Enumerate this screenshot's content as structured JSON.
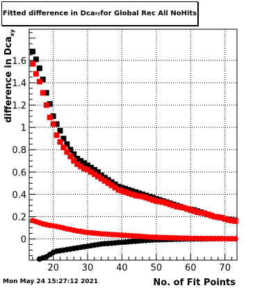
{
  "chart_data": {
    "type": "scatter",
    "title": {
      "text": "Fitted difference in Dca",
      "subscript": "xy",
      "suffix": " for Global Rec All NoHits"
    },
    "xlabel": "No. of Fit Points",
    "ylabel": "difference in Dca",
    "ylabel_subscript": "xy",
    "xlim": [
      13,
      73.5
    ],
    "ylim": [
      -0.19,
      1.88
    ],
    "x_ticks": [
      20,
      30,
      40,
      50,
      60,
      70
    ],
    "y_ticks": [
      0,
      0.2,
      0.4,
      0.6,
      0.8,
      1,
      1.2,
      1.4,
      1.6
    ],
    "y_tick_labels": [
      "0",
      "0.2",
      "0.4",
      "0.6",
      "0.8",
      "1",
      "1.2",
      "1.4",
      "1.6"
    ],
    "grid": true,
    "series": [
      {
        "color": "#000000",
        "marker": "square",
        "x": [
          14,
          15,
          16,
          17,
          18,
          19,
          20,
          21,
          22,
          23,
          24,
          25,
          26,
          27,
          28,
          29,
          30,
          31,
          32,
          33,
          34,
          35,
          36,
          37,
          38,
          39,
          40,
          41,
          42,
          43,
          44,
          45,
          46,
          47,
          48,
          49,
          50,
          51,
          52,
          53,
          54,
          55,
          56,
          57,
          58,
          59,
          60,
          61,
          62,
          63,
          64,
          65,
          66,
          67,
          68,
          69,
          70,
          71,
          72,
          73
        ],
        "y": [
          1.68,
          1.61,
          1.53,
          1.43,
          1.31,
          1.21,
          1.1,
          1.03,
          0.97,
          0.9,
          0.85,
          0.8,
          0.76,
          0.72,
          0.7,
          0.68,
          0.66,
          0.64,
          0.62,
          0.6,
          0.57,
          0.55,
          0.53,
          0.51,
          0.49,
          0.47,
          0.46,
          0.45,
          0.44,
          0.43,
          0.42,
          0.41,
          0.4,
          0.39,
          0.38,
          0.37,
          0.36,
          0.35,
          0.34,
          0.33,
          0.32,
          0.31,
          0.3,
          0.29,
          0.28,
          0.27,
          0.265,
          0.26,
          0.25,
          0.24,
          0.23,
          0.22,
          0.21,
          0.2,
          0.195,
          0.19,
          0.18,
          0.175,
          0.17,
          0.165
        ]
      },
      {
        "color": "#ff0000",
        "marker": "square",
        "x": [
          14,
          15,
          16,
          17,
          18,
          19,
          20,
          21,
          22,
          23,
          24,
          25,
          26,
          27,
          28,
          29,
          30,
          31,
          32,
          33,
          34,
          35,
          36,
          37,
          38,
          39,
          40,
          41,
          42,
          43,
          44,
          45,
          46,
          47,
          48,
          49,
          50,
          51,
          52,
          53,
          54,
          55,
          56,
          57,
          58,
          59,
          60,
          61,
          62,
          63,
          64,
          65,
          66,
          67,
          68,
          69,
          70,
          71,
          72,
          73
        ],
        "y": [
          1.57,
          1.48,
          1.41,
          1.31,
          1.2,
          1.09,
          1.03,
          0.93,
          0.87,
          0.82,
          0.78,
          0.74,
          0.7,
          0.67,
          0.65,
          0.63,
          0.62,
          0.6,
          0.58,
          0.56,
          0.54,
          0.52,
          0.5,
          0.48,
          0.46,
          0.44,
          0.43,
          0.42,
          0.41,
          0.4,
          0.39,
          0.385,
          0.38,
          0.37,
          0.36,
          0.35,
          0.34,
          0.335,
          0.33,
          0.32,
          0.31,
          0.3,
          0.29,
          0.285,
          0.28,
          0.27,
          0.26,
          0.25,
          0.24,
          0.235,
          0.23,
          0.22,
          0.21,
          0.2,
          0.195,
          0.19,
          0.18,
          0.17,
          0.165,
          0.16
        ]
      },
      {
        "color": "#000000",
        "marker": "circle",
        "x": [
          16,
          17,
          18,
          19,
          20,
          21,
          22,
          23,
          24,
          25,
          26,
          27,
          28,
          29,
          30,
          31,
          32,
          33,
          34,
          35,
          36,
          37,
          38,
          39,
          40,
          41,
          42,
          43,
          44,
          45,
          46,
          47,
          48,
          49,
          50,
          51,
          52,
          53,
          54,
          55,
          56,
          57,
          58,
          59,
          60,
          61,
          62,
          63,
          64,
          65,
          66,
          67,
          68,
          69,
          70,
          71,
          72,
          73
        ],
        "y": [
          -0.18,
          -0.17,
          -0.16,
          -0.14,
          -0.12,
          -0.11,
          -0.105,
          -0.1,
          -0.095,
          -0.09,
          -0.085,
          -0.08,
          -0.075,
          -0.07,
          -0.065,
          -0.06,
          -0.055,
          -0.05,
          -0.045,
          -0.042,
          -0.04,
          -0.038,
          -0.035,
          -0.032,
          -0.03,
          -0.028,
          -0.025,
          -0.022,
          -0.02,
          -0.018,
          -0.015,
          -0.013,
          -0.011,
          -0.009,
          -0.008,
          -0.007,
          -0.006,
          -0.005,
          -0.004,
          -0.003,
          -0.002,
          -0.002,
          -0.001,
          0,
          0,
          0,
          0.001,
          0.001,
          0.001,
          0.001,
          0.002,
          0.002,
          0.002,
          0.002,
          0.002,
          0.002,
          0.002,
          0.002
        ]
      },
      {
        "color": "#ff0000",
        "marker": "circle",
        "x": [
          14,
          15,
          16,
          17,
          18,
          19,
          20,
          21,
          22,
          23,
          24,
          25,
          26,
          27,
          28,
          29,
          30,
          31,
          32,
          33,
          34,
          35,
          36,
          37,
          38,
          39,
          40,
          41,
          42,
          43,
          44,
          45,
          46,
          47,
          48,
          49,
          50,
          51,
          52,
          53,
          54,
          55,
          56,
          57,
          58,
          59,
          60,
          61,
          62,
          63,
          64,
          65,
          66,
          67,
          68,
          69,
          70,
          71,
          72,
          73
        ],
        "y": [
          0.165,
          0.155,
          0.145,
          0.135,
          0.128,
          0.122,
          0.118,
          0.112,
          0.105,
          0.098,
          0.09,
          0.085,
          0.078,
          0.072,
          0.068,
          0.062,
          0.058,
          0.055,
          0.052,
          0.049,
          0.046,
          0.044,
          0.042,
          0.04,
          0.038,
          0.036,
          0.034,
          0.032,
          0.03,
          0.028,
          0.026,
          0.024,
          0.022,
          0.02,
          0.018,
          0.016,
          0.015,
          0.014,
          0.013,
          0.012,
          0.011,
          0.01,
          0.009,
          0.008,
          0.007,
          0.007,
          0.006,
          0.006,
          0.005,
          0.005,
          0.004,
          0.004,
          0.004,
          0.003,
          0.003,
          0.003,
          0.002,
          0.002,
          0.002,
          0.002
        ]
      }
    ]
  },
  "footer": {
    "timestamp": "Mon May 24 15:27:12 2021"
  }
}
